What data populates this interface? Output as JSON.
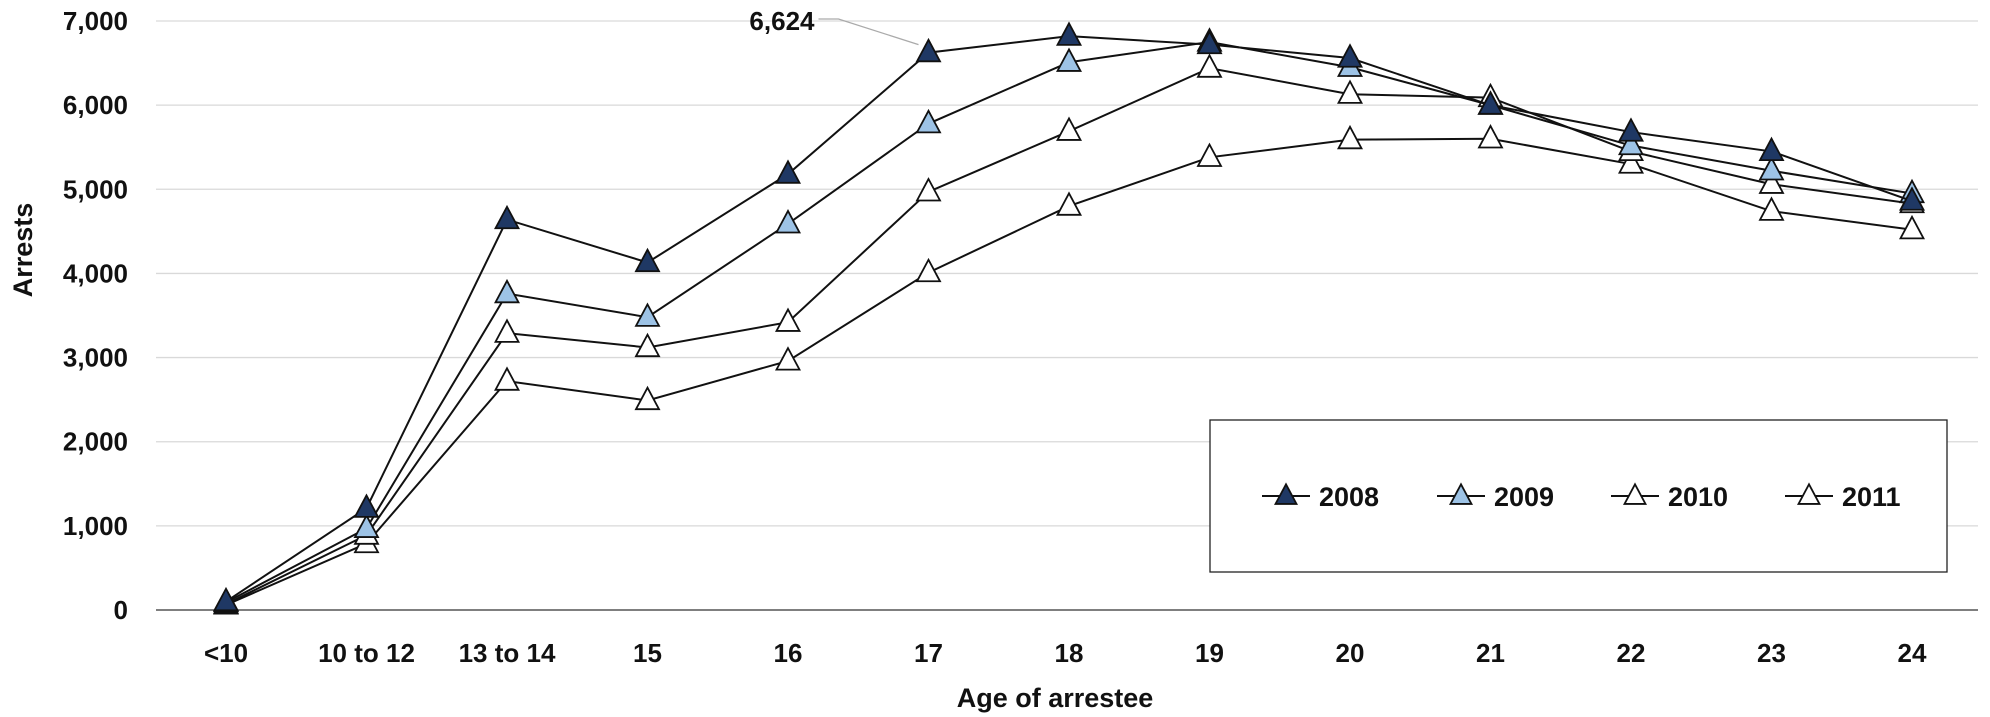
{
  "chart_data": {
    "type": "line",
    "categories": [
      "<10",
      "10 to 12",
      "13 to 14",
      "15",
      "16",
      "17",
      "18",
      "19",
      "20",
      "21",
      "22",
      "23",
      "24"
    ],
    "series": [
      {
        "name": "2008",
        "values": [
          100,
          1210,
          4640,
          4130,
          5180,
          6624,
          6820,
          6720,
          6560,
          6000,
          5680,
          5450,
          4860
        ],
        "fill": "#1f3864"
      },
      {
        "name": "2009",
        "values": [
          90,
          970,
          3760,
          3480,
          4590,
          5780,
          6510,
          6750,
          6450,
          6000,
          5520,
          5220,
          4950
        ],
        "fill": "#9dc3e6"
      },
      {
        "name": "2010",
        "values": [
          70,
          890,
          3290,
          3120,
          3420,
          4970,
          5690,
          6440,
          6130,
          6090,
          5450,
          5060,
          4830
        ],
        "fill": "#ffffff"
      },
      {
        "name": "2011",
        "values": [
          60,
          790,
          2720,
          2490,
          2960,
          4010,
          4800,
          5380,
          5590,
          5600,
          5300,
          4740,
          4520
        ],
        "fill": "#ffffff"
      }
    ],
    "xlabel": "Age of arrestee",
    "ylabel": "Arrests",
    "ylim": [
      0,
      7000
    ],
    "yticks": [
      "0",
      "1,000",
      "2,000",
      "3,000",
      "4,000",
      "5,000",
      "6,000",
      "7,000"
    ],
    "grid": true,
    "legend_position": "bottom-right, boxed",
    "annotations": [
      {
        "text": "6,624",
        "series": "2008",
        "category": "17"
      }
    ],
    "colors": {
      "line": "#111111",
      "grid": "#d9d9d9",
      "axis": "#555555"
    }
  }
}
